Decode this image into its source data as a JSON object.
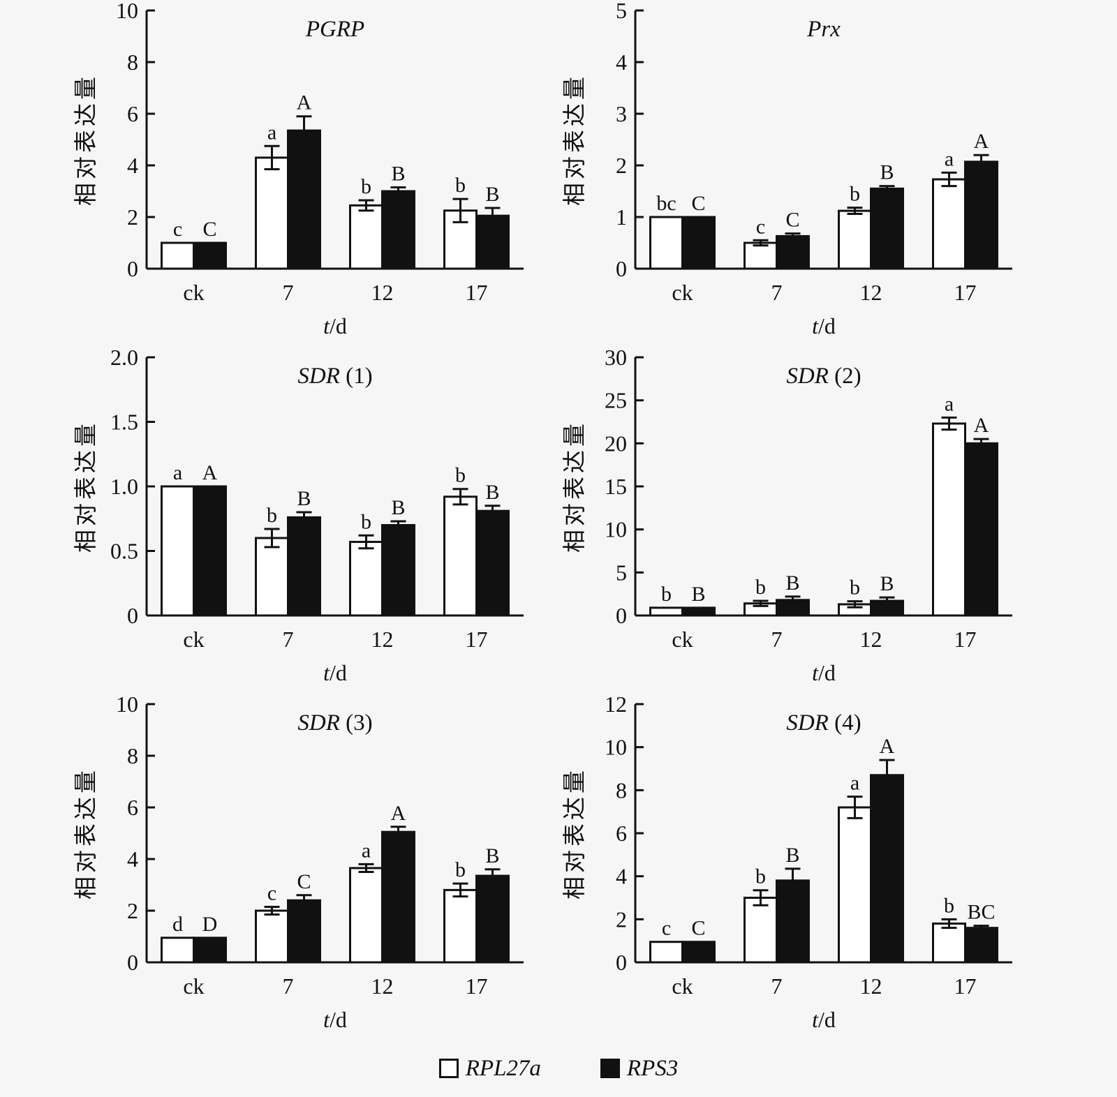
{
  "page": {
    "background": "#f6f6f6",
    "ink": "#111111"
  },
  "legend": {
    "items": [
      {
        "label": "RPL27a",
        "swatch": "open-square",
        "fill": "#ffffff"
      },
      {
        "label": "RPS3",
        "swatch": "filled-square",
        "fill": "#111111"
      }
    ]
  },
  "chart_data": [
    {
      "type": "bar",
      "title": {
        "italic": "PGRP",
        "rest": ""
      },
      "ylabel": "相对表达量",
      "xlabel": {
        "italic": "t",
        "rest": "/d"
      },
      "ylim": [
        0,
        10
      ],
      "ytick_values": [
        0,
        2,
        4,
        6,
        8,
        10
      ],
      "ytick_labels": [
        "0",
        "2",
        "4",
        "6",
        "8",
        "10"
      ],
      "categories": [
        "ck",
        "7",
        "12",
        "17"
      ],
      "series": [
        {
          "name": "RPL27a",
          "fill": "#ffffff",
          "values": [
            1.0,
            4.3,
            2.45,
            2.25
          ],
          "errors": [
            0,
            0.45,
            0.2,
            0.45
          ],
          "letters": [
            "c",
            "a",
            "b",
            "b"
          ]
        },
        {
          "name": "RPS3",
          "fill": "#111111",
          "values": [
            1.0,
            5.35,
            3.0,
            2.05
          ],
          "errors": [
            0,
            0.55,
            0.15,
            0.3
          ],
          "letters": [
            "C",
            "A",
            "B",
            "B"
          ]
        }
      ]
    },
    {
      "type": "bar",
      "title": {
        "italic": "Prx",
        "rest": ""
      },
      "ylabel": "相对表达量",
      "xlabel": {
        "italic": "t",
        "rest": "/d"
      },
      "ylim": [
        0,
        5
      ],
      "ytick_values": [
        0,
        1,
        2,
        3,
        4,
        5
      ],
      "ytick_labels": [
        "0",
        "1",
        "2",
        "3",
        "4",
        "5"
      ],
      "categories": [
        "ck",
        "7",
        "12",
        "17"
      ],
      "series": [
        {
          "name": "RPL27a",
          "fill": "#ffffff",
          "values": [
            1.0,
            0.5,
            1.12,
            1.73
          ],
          "errors": [
            0,
            0.05,
            0.06,
            0.13
          ],
          "letters": [
            "bc",
            "c",
            "b",
            "a"
          ]
        },
        {
          "name": "RPS3",
          "fill": "#111111",
          "values": [
            1.0,
            0.63,
            1.55,
            2.07
          ],
          "errors": [
            0,
            0.05,
            0.05,
            0.13
          ],
          "letters": [
            "C",
            "C",
            "B",
            "A"
          ]
        }
      ]
    },
    {
      "type": "bar",
      "title": {
        "italic": "SDR",
        "rest": " (1)"
      },
      "ylabel": "相对表达量",
      "xlabel": {
        "italic": "t",
        "rest": "/d"
      },
      "ylim": [
        0,
        2
      ],
      "ytick_values": [
        0,
        0.5,
        1.0,
        1.5,
        2.0
      ],
      "ytick_labels": [
        "0",
        "0.5",
        "1.0",
        "1.5",
        "2.0"
      ],
      "categories": [
        "ck",
        "7",
        "12",
        "17"
      ],
      "series": [
        {
          "name": "RPL27a",
          "fill": "#ffffff",
          "values": [
            1.0,
            0.6,
            0.57,
            0.92
          ],
          "errors": [
            0,
            0.07,
            0.05,
            0.06
          ],
          "letters": [
            "a",
            "b",
            "b",
            "b"
          ]
        },
        {
          "name": "RPS3",
          "fill": "#111111",
          "values": [
            1.0,
            0.76,
            0.7,
            0.81
          ],
          "errors": [
            0,
            0.04,
            0.03,
            0.04
          ],
          "letters": [
            "A",
            "B",
            "B",
            "B"
          ]
        }
      ]
    },
    {
      "type": "bar",
      "title": {
        "italic": "SDR",
        "rest": " (2)"
      },
      "ylabel": "相对表达量",
      "xlabel": {
        "italic": "t",
        "rest": "/d"
      },
      "ylim": [
        0,
        30
      ],
      "ytick_values": [
        0,
        5,
        10,
        15,
        20,
        25,
        30
      ],
      "ytick_labels": [
        "0",
        "5",
        "10",
        "15",
        "20",
        "25",
        "30"
      ],
      "categories": [
        "ck",
        "7",
        "12",
        "17"
      ],
      "series": [
        {
          "name": "RPL27a",
          "fill": "#ffffff",
          "values": [
            0.9,
            1.4,
            1.3,
            22.3
          ],
          "errors": [
            0,
            0.3,
            0.35,
            0.7
          ],
          "letters": [
            "b",
            "b",
            "b",
            "a"
          ]
        },
        {
          "name": "RPS3",
          "fill": "#111111",
          "values": [
            0.9,
            1.8,
            1.7,
            20.0
          ],
          "errors": [
            0,
            0.4,
            0.4,
            0.5
          ],
          "letters": [
            "B",
            "B",
            "B",
            "A"
          ]
        }
      ]
    },
    {
      "type": "bar",
      "title": {
        "italic": "SDR",
        "rest": " (3)"
      },
      "ylabel": "相对表达量",
      "xlabel": {
        "italic": "t",
        "rest": "/d"
      },
      "ylim": [
        0,
        10
      ],
      "ytick_values": [
        0,
        2,
        4,
        6,
        8,
        10
      ],
      "ytick_labels": [
        "0",
        "2",
        "4",
        "6",
        "8",
        "10"
      ],
      "categories": [
        "ck",
        "7",
        "12",
        "17"
      ],
      "series": [
        {
          "name": "RPL27a",
          "fill": "#ffffff",
          "values": [
            0.95,
            2.0,
            3.65,
            2.8
          ],
          "errors": [
            0,
            0.15,
            0.15,
            0.25
          ],
          "letters": [
            "d",
            "c",
            "a",
            "b"
          ]
        },
        {
          "name": "RPS3",
          "fill": "#111111",
          "values": [
            0.95,
            2.4,
            5.05,
            3.35
          ],
          "errors": [
            0,
            0.2,
            0.2,
            0.25
          ],
          "letters": [
            "D",
            "C",
            "A",
            "B"
          ]
        }
      ]
    },
    {
      "type": "bar",
      "title": {
        "italic": "SDR",
        "rest": " (4)"
      },
      "ylabel": "相对表达量",
      "xlabel": {
        "italic": "t",
        "rest": "/d"
      },
      "ylim": [
        0,
        12
      ],
      "ytick_values": [
        0,
        2,
        4,
        6,
        8,
        10,
        12
      ],
      "ytick_labels": [
        "0",
        "2",
        "4",
        "6",
        "8",
        "10",
        "12"
      ],
      "categories": [
        "ck",
        "7",
        "12",
        "17"
      ],
      "series": [
        {
          "name": "RPL27a",
          "fill": "#ffffff",
          "values": [
            0.95,
            3.0,
            7.2,
            1.8
          ],
          "errors": [
            0,
            0.35,
            0.5,
            0.2
          ],
          "letters": [
            "c",
            "b",
            "a",
            "b"
          ]
        },
        {
          "name": "RPS3",
          "fill": "#111111",
          "values": [
            0.95,
            3.8,
            8.7,
            1.6
          ],
          "errors": [
            0,
            0.55,
            0.7,
            0.1
          ],
          "letters": [
            "C",
            "B",
            "A",
            "BC"
          ]
        }
      ]
    }
  ]
}
